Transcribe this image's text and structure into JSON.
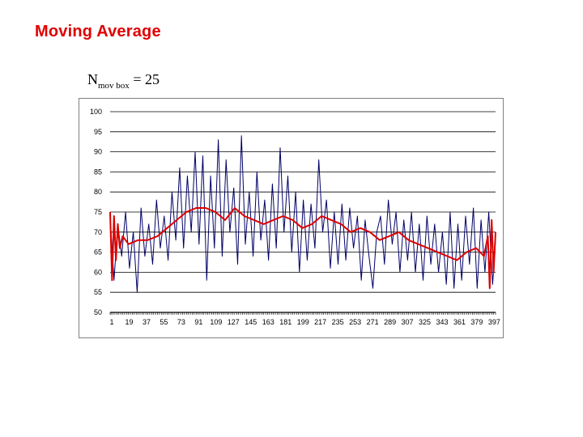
{
  "slide": {
    "title": "Moving Average",
    "formula_base": "N",
    "formula_sub": "mov box",
    "formula_rest": " = 25"
  },
  "chart_data": {
    "type": "line",
    "ylim": [
      50,
      100
    ],
    "yticks": [
      "50",
      "55",
      "60",
      "65",
      "70",
      "75",
      "80",
      "85",
      "90",
      "95",
      "100"
    ],
    "xticks": [
      "1",
      "19",
      "37",
      "55",
      "73",
      "91",
      "109",
      "127",
      "145",
      "163",
      "181",
      "199",
      "217",
      "235",
      "253",
      "271",
      "289",
      "307",
      "325",
      "343",
      "361",
      "379",
      "397"
    ],
    "x_range": [
      1,
      400
    ],
    "grid": true,
    "series": [
      {
        "color": "#000066",
        "x": [
          1,
          5,
          9,
          13,
          17,
          21,
          25,
          29,
          33,
          37,
          41,
          45,
          49,
          53,
          57,
          61,
          65,
          69,
          73,
          77,
          81,
          85,
          89,
          93,
          97,
          101,
          105,
          109,
          113,
          117,
          121,
          125,
          129,
          133,
          137,
          141,
          145,
          149,
          153,
          157,
          161,
          165,
          169,
          173,
          177,
          181,
          185,
          189,
          193,
          197,
          201,
          205,
          209,
          213,
          217,
          221,
          225,
          229,
          233,
          237,
          241,
          245,
          249,
          253,
          257,
          261,
          265,
          269,
          273,
          277,
          281,
          285,
          289,
          293,
          297,
          301,
          305,
          309,
          313,
          317,
          321,
          325,
          329,
          333,
          337,
          341,
          345,
          349,
          353,
          357,
          361,
          365,
          369,
          373,
          377,
          381,
          385,
          389,
          393,
          397,
          400
        ],
        "values": [
          74,
          58,
          72,
          64,
          75,
          61,
          70,
          55,
          76,
          64,
          72,
          62,
          78,
          66,
          74,
          63,
          80,
          68,
          86,
          66,
          84,
          70,
          90,
          67,
          89,
          58,
          84,
          66,
          93,
          64,
          88,
          70,
          81,
          62,
          94,
          67,
          80,
          64,
          85,
          68,
          78,
          63,
          82,
          66,
          91,
          70,
          84,
          65,
          80,
          60,
          78,
          63,
          77,
          66,
          88,
          70,
          78,
          61,
          75,
          62,
          77,
          63,
          76,
          66,
          74,
          58,
          73,
          64,
          56,
          70,
          74,
          62,
          78,
          67,
          75,
          60,
          73,
          63,
          75,
          60,
          72,
          58,
          74,
          62,
          72,
          60,
          70,
          57,
          75,
          56,
          72,
          58,
          74,
          62,
          76,
          56,
          73,
          60,
          75,
          57,
          68
        ]
      },
      {
        "color": "#dd0000",
        "x": [
          1,
          3,
          5,
          7,
          9,
          11,
          14,
          20,
          30,
          40,
          50,
          60,
          70,
          80,
          90,
          100,
          110,
          120,
          130,
          140,
          150,
          160,
          170,
          180,
          190,
          200,
          210,
          220,
          230,
          240,
          250,
          260,
          270,
          280,
          290,
          300,
          310,
          320,
          330,
          340,
          350,
          360,
          370,
          380,
          388,
          392,
          394,
          396,
          398,
          400
        ],
        "values": [
          75,
          58,
          74,
          63,
          72,
          66,
          69,
          67,
          68,
          68,
          69,
          71,
          73,
          75,
          76,
          76,
          75,
          73,
          76,
          74,
          73,
          72,
          73,
          74,
          73,
          71,
          72,
          74,
          73,
          72,
          70,
          71,
          70,
          68,
          69,
          70,
          68,
          67,
          66,
          65,
          64,
          63,
          65,
          66,
          64,
          69,
          56,
          73,
          60,
          70
        ]
      }
    ]
  }
}
